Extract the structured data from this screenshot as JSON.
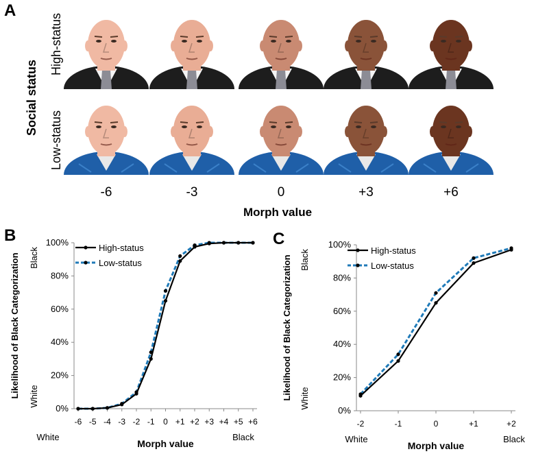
{
  "panel_a": {
    "letter": "A",
    "social_status_label": "Social status",
    "row_labels": [
      "High-status",
      "Low-status"
    ],
    "morph_ticks": [
      "-6",
      "-3",
      "0",
      "+3",
      "+6"
    ],
    "morph_title": "Morph value",
    "skin_tones": [
      "#f0b9a3",
      "#e9ad95",
      "#c98a72",
      "#8a5339",
      "#6b3520"
    ],
    "high_status_attire": "dark-suit-with-tie",
    "low_status_attire": "blue-work-shirt"
  },
  "panel_b": {
    "letter": "B"
  },
  "panel_c": {
    "letter": "C"
  },
  "chart_data": [
    {
      "type": "line",
      "title": "",
      "ylabel": "Likelihood of Black Categorization",
      "y_end_labels": {
        "bottom": "White",
        "top": "Black"
      },
      "xlabel": "Morph value",
      "x_end_labels": {
        "left": "White",
        "right": "Black"
      },
      "categories": [
        "-6",
        "-5",
        "-4",
        "-3",
        "-2",
        "-1",
        "0",
        "+1",
        "+2",
        "+3",
        "+4",
        "+5",
        "+6"
      ],
      "yticks": [
        "0%",
        "20%",
        "40%",
        "60%",
        "80%",
        "100%"
      ],
      "ylim": [
        0,
        100
      ],
      "legend_position": "top-left",
      "series": [
        {
          "name": "High-status",
          "color": "#000000",
          "dash": "solid",
          "values": [
            0,
            0,
            0.5,
            2.5,
            9,
            30,
            65,
            89,
            97.5,
            99.5,
            100,
            100,
            100
          ]
        },
        {
          "name": "Low-status",
          "color": "#1f7ab8",
          "dash": "dashed",
          "values": [
            0,
            0,
            0.5,
            3,
            10,
            34,
            71,
            92,
            98.5,
            100,
            100,
            100,
            100
          ]
        }
      ]
    },
    {
      "type": "line",
      "title": "",
      "ylabel": "Likelihood of Black Categorization",
      "y_end_labels": {
        "bottom": "White",
        "top": "Black"
      },
      "xlabel": "Morph value",
      "x_end_labels": {
        "left": "White",
        "right": "Black"
      },
      "categories": [
        "-2",
        "-1",
        "0",
        "+1",
        "+2"
      ],
      "yticks": [
        "0%",
        "20%",
        "40%",
        "60%",
        "80%",
        "100%"
      ],
      "ylim": [
        0,
        100
      ],
      "legend_position": "top-left",
      "series": [
        {
          "name": "High-status",
          "color": "#000000",
          "dash": "solid",
          "values": [
            9,
            30,
            65,
            89,
            97
          ]
        },
        {
          "name": "Low-status",
          "color": "#1f7ab8",
          "dash": "dashed",
          "values": [
            10,
            34,
            71,
            92,
            98
          ]
        }
      ]
    }
  ]
}
